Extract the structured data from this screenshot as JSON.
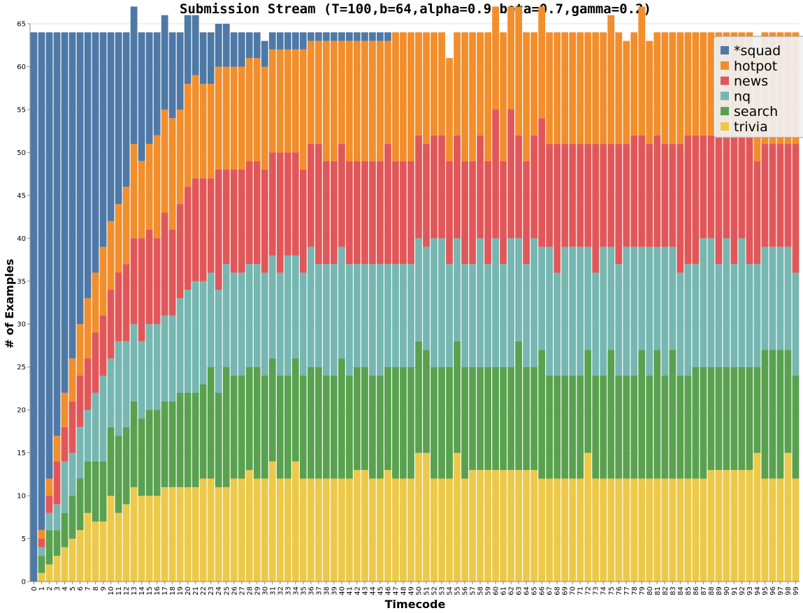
{
  "chart_data": {
    "type": "bar",
    "stacked": true,
    "title": "Submission Stream (T=100,b=64,alpha=0.9,beta=0.7,gamma=0.2)",
    "xlabel": "Timecode",
    "ylabel": "# of Examples",
    "ylim": [
      0,
      65
    ],
    "yticks": [
      0,
      5,
      10,
      15,
      20,
      25,
      30,
      35,
      40,
      45,
      50,
      55,
      60,
      65
    ],
    "grid": true,
    "legend_position": "top-right",
    "x": [
      0,
      1,
      2,
      3,
      4,
      5,
      6,
      7,
      8,
      9,
      10,
      11,
      12,
      13,
      14,
      15,
      16,
      17,
      18,
      19,
      20,
      21,
      22,
      23,
      24,
      25,
      26,
      27,
      28,
      29,
      30,
      31,
      32,
      33,
      34,
      35,
      36,
      37,
      38,
      39,
      40,
      41,
      42,
      43,
      44,
      45,
      46,
      47,
      48,
      49,
      50,
      51,
      52,
      53,
      54,
      55,
      56,
      57,
      58,
      59,
      60,
      61,
      62,
      63,
      64,
      65,
      66,
      67,
      68,
      69,
      70,
      71,
      72,
      73,
      74,
      75,
      76,
      77,
      78,
      79,
      80,
      81,
      82,
      83,
      84,
      85,
      86,
      87,
      88,
      89,
      90,
      91,
      92,
      93,
      94,
      95,
      96,
      97,
      98,
      99
    ],
    "series": [
      {
        "name": "trivia",
        "color": "#edc949",
        "values": [
          0,
          1,
          2,
          3,
          4,
          5,
          6,
          8,
          7,
          7,
          10,
          8,
          9,
          11,
          10,
          10,
          10,
          11,
          11,
          11,
          11,
          11,
          12,
          12,
          11,
          11,
          12,
          12,
          13,
          12,
          12,
          14,
          12,
          12,
          14,
          12,
          12,
          12,
          12,
          12,
          12,
          12,
          13,
          13,
          12,
          12,
          13,
          12,
          12,
          12,
          15,
          15,
          12,
          12,
          12,
          15,
          12,
          13,
          13,
          13,
          13,
          13,
          13,
          13,
          13,
          13,
          12,
          12,
          12,
          12,
          12,
          12,
          15,
          12,
          12,
          12,
          12,
          12,
          12,
          12,
          12,
          12,
          12,
          12,
          12,
          12,
          12,
          12,
          13,
          13,
          13,
          13,
          13,
          13,
          15,
          12,
          12,
          12,
          15,
          12
        ]
      },
      {
        "name": "search",
        "color": "#59a14f",
        "values": [
          0,
          2,
          4,
          3,
          4,
          5,
          6,
          6,
          7,
          7,
          8,
          9,
          9,
          10,
          9,
          10,
          10,
          10,
          10,
          11,
          11,
          11,
          11,
          13,
          11,
          14,
          12,
          12,
          12,
          13,
          12,
          12,
          12,
          12,
          12,
          12,
          13,
          13,
          12,
          12,
          14,
          12,
          12,
          12,
          12,
          12,
          12,
          13,
          13,
          13,
          13,
          12,
          13,
          13,
          13,
          13,
          13,
          12,
          12,
          12,
          12,
          12,
          12,
          15,
          12,
          12,
          15,
          12,
          12,
          12,
          12,
          12,
          12,
          12,
          12,
          15,
          12,
          12,
          12,
          15,
          12,
          15,
          12,
          15,
          12,
          12,
          13,
          13,
          12,
          12,
          12,
          12,
          12,
          12,
          10,
          15,
          15,
          15,
          12,
          12
        ]
      },
      {
        "name": "nq",
        "color": "#76b7b2",
        "values": [
          0,
          1,
          2,
          3,
          6,
          5,
          6,
          6,
          8,
          10,
          8,
          11,
          10,
          9,
          9,
          10,
          10,
          10,
          10,
          11,
          12,
          13,
          12,
          11,
          12,
          12,
          12,
          12,
          12,
          12,
          12,
          12,
          12,
          14,
          12,
          12,
          14,
          12,
          13,
          13,
          13,
          13,
          12,
          12,
          13,
          13,
          12,
          12,
          12,
          12,
          12,
          12,
          15,
          15,
          12,
          12,
          12,
          12,
          15,
          12,
          15,
          12,
          15,
          12,
          12,
          15,
          12,
          15,
          12,
          15,
          15,
          15,
          12,
          12,
          15,
          12,
          13,
          15,
          15,
          12,
          15,
          12,
          15,
          12,
          12,
          13,
          12,
          15,
          15,
          12,
          15,
          12,
          15,
          12,
          12,
          12,
          12,
          12,
          12,
          12
        ]
      },
      {
        "name": "news",
        "color": "#e15759",
        "values": [
          0,
          1,
          2,
          5,
          4,
          6,
          6,
          6,
          7,
          7,
          8,
          8,
          9,
          10,
          12,
          11,
          10,
          12,
          10,
          11,
          12,
          12,
          12,
          11,
          14,
          11,
          12,
          12,
          12,
          12,
          12,
          12,
          14,
          12,
          12,
          12,
          12,
          14,
          12,
          12,
          12,
          12,
          12,
          12,
          12,
          12,
          14,
          12,
          12,
          12,
          12,
          12,
          12,
          12,
          12,
          12,
          12,
          12,
          12,
          12,
          15,
          12,
          15,
          12,
          12,
          12,
          15,
          12,
          15,
          12,
          12,
          12,
          12,
          15,
          12,
          12,
          14,
          12,
          13,
          13,
          12,
          13,
          12,
          12,
          15,
          15,
          15,
          12,
          12,
          15,
          12,
          15,
          12,
          15,
          12,
          12,
          12,
          12,
          12,
          15
        ]
      },
      {
        "name": "hotpot",
        "color": "#f28e2b",
        "values": [
          0,
          1,
          2,
          3,
          4,
          5,
          6,
          7,
          7,
          8,
          8,
          8,
          9,
          11,
          9,
          10,
          12,
          12,
          13,
          11,
          12,
          12,
          11,
          11,
          12,
          12,
          12,
          12,
          12,
          12,
          12,
          12,
          12,
          12,
          12,
          14,
          12,
          12,
          14,
          14,
          12,
          14,
          14,
          14,
          14,
          14,
          12,
          15,
          15,
          15,
          12,
          13,
          12,
          12,
          12,
          12,
          15,
          15,
          12,
          15,
          12,
          15,
          12,
          15,
          15,
          12,
          13,
          13,
          13,
          13,
          13,
          13,
          13,
          13,
          13,
          15,
          13,
          12,
          12,
          15,
          12,
          12,
          13,
          13,
          13,
          12,
          12,
          12,
          12,
          12,
          12,
          12,
          12,
          12,
          12,
          13,
          13,
          13,
          13,
          13
        ]
      },
      {
        "name": "*squad",
        "color": "#4e79a7",
        "values": [
          64,
          58,
          52,
          47,
          42,
          38,
          34,
          31,
          28,
          25,
          22,
          20,
          18,
          16,
          15,
          13,
          12,
          11,
          10,
          9,
          8,
          7,
          6,
          6,
          5,
          5,
          4,
          4,
          3,
          3,
          3,
          2,
          2,
          2,
          2,
          2,
          1,
          1,
          1,
          1,
          1,
          1,
          1,
          1,
          1,
          1,
          1,
          0,
          0,
          0,
          0,
          0,
          0,
          0,
          0,
          0,
          0,
          0,
          0,
          0,
          0,
          0,
          0,
          0,
          0,
          0,
          0,
          0,
          0,
          0,
          0,
          0,
          0,
          0,
          0,
          0,
          0,
          0,
          0,
          0,
          0,
          0,
          0,
          0,
          0,
          0,
          0,
          0,
          0,
          0,
          0,
          0,
          0,
          0,
          0,
          0,
          0,
          0,
          0,
          0
        ]
      }
    ],
    "legend_order": [
      "*squad",
      "hotpot",
      "news",
      "nq",
      "search",
      "trivia"
    ]
  }
}
